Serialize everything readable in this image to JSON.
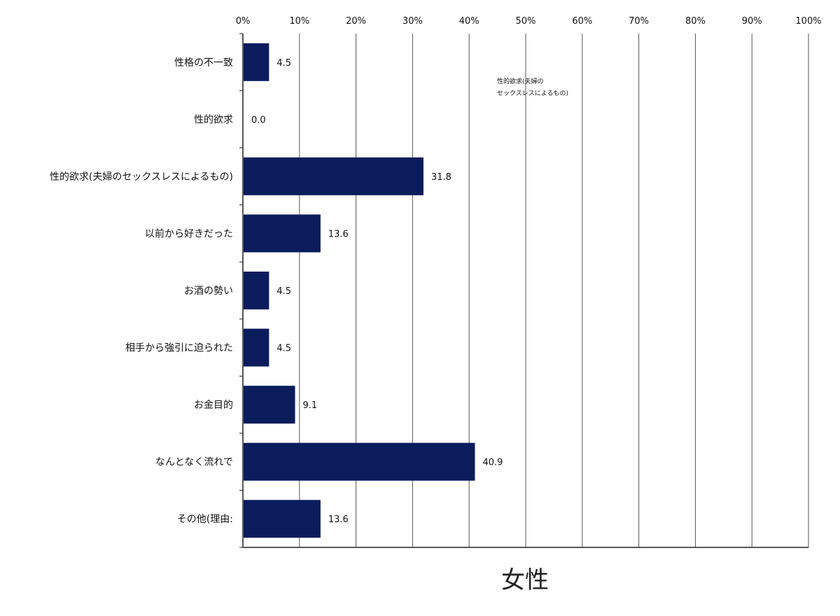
{
  "chart_data": {
    "type": "bar",
    "orientation": "horizontal",
    "title": "",
    "caption": "女性",
    "xlabel": "",
    "ylabel": "",
    "xlim": [
      0,
      100
    ],
    "x_ticks": [
      "0%",
      "10%",
      "20%",
      "30%",
      "40%",
      "50%",
      "60%",
      "70%",
      "80%",
      "90%",
      "100%"
    ],
    "x_axis_position": "top",
    "grid": true,
    "legend": "none",
    "bar_color": "#0b1c5c",
    "categories": [
      "性格の不一致",
      "性的欲求",
      "性的欲求(夫婦のセックスレスによるもの)",
      "以前から好きだった",
      "お酒の勢い",
      "相手から強引に迫られた",
      "お金目的",
      "なんとなく流れで",
      "その他(理由:"
    ],
    "values": [
      4.5,
      0.0,
      31.8,
      13.6,
      4.5,
      4.5,
      9.1,
      40.9,
      13.6
    ],
    "value_labels": [
      "4.5",
      "0.0",
      "31.8",
      "13.6",
      "4.5",
      "4.5",
      "9.1",
      "40.9",
      "13.6"
    ],
    "annotation": [
      "性的欲求(夫婦の",
      "セックスレスによるもの)"
    ]
  }
}
